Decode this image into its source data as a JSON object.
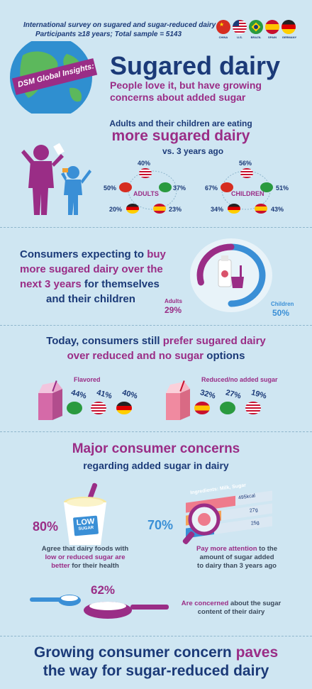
{
  "header": {
    "survey_line1": "International survey on sugared and sugar-reduced dairy",
    "survey_line2": "Participants ≥18 years; Total sample = 5143",
    "countries": [
      "CHINA",
      "U.S.",
      "BRAZIL",
      "SPAIN",
      "GERMANY"
    ],
    "badge": "DSM Global Insights:",
    "title": "Sugared dairy",
    "subtitle_line1": "People love it, but have growing",
    "subtitle_line2": "concerns about added sugar"
  },
  "section1": {
    "line1": "Adults and their children are eating",
    "line2": "more sugared dairy",
    "line3": "vs. 3 years ago",
    "adults": {
      "label": "ADULTS",
      "us": "40%",
      "china": "50%",
      "brazil": "37%",
      "germany": "20%",
      "spain": "23%"
    },
    "children": {
      "label": "CHILDREN",
      "us": "56%",
      "china": "67%",
      "brazil": "51%",
      "germany": "34%",
      "spain": "43%"
    }
  },
  "section2": {
    "line1a": "Consumers expecting to",
    "line1b": "buy",
    "line2": "more sugared dairy over the",
    "line3a": "next 3 years",
    "line3b": "for themselves",
    "line4": "and their children",
    "adults_label": "Adults",
    "adults_value": "29%",
    "children_label": "Children",
    "children_value": "50%",
    "adults_fraction": 0.29,
    "children_fraction": 0.5
  },
  "section3": {
    "line1a": "Today, consumers still",
    "line1b": "prefer sugared dairy",
    "line2a": "over reduced and no sugar",
    "line2b": "options",
    "flavored_label": "Flavored",
    "flavored": [
      {
        "country": "BRAZIL",
        "value": "44%"
      },
      {
        "country": "U.S.",
        "value": "41%"
      },
      {
        "country": "GERMANY",
        "value": "40%"
      }
    ],
    "reduced_label": "Reduced/no added sugar",
    "reduced": [
      {
        "country": "SPAIN",
        "value": "32%"
      },
      {
        "country": "BRAZIL",
        "value": "27%"
      },
      {
        "country": "U.S.",
        "value": "19%"
      }
    ]
  },
  "section4": {
    "title": "Major consumer concerns",
    "subtitle": "regarding added sugar in dairy",
    "stat1_value": "80%",
    "low_sugar_line1": "LOW",
    "low_sugar_line2": "SUGAR",
    "stat1_line1": "Agree that dairy foods with",
    "stat1_line2": "low or reduced sugar are",
    "stat1_line3a": "better",
    "stat1_line3b": "for their health",
    "ingredients": "Ingredients: Milk, Sugar",
    "kcal": "495kcal",
    "grams1": "27g",
    "grams2": "25g",
    "stat2_value": "70%",
    "stat2_line1a": "Pay more attention",
    "stat2_line1b": "to the",
    "stat2_line2": "amount of sugar added",
    "stat2_line3": "to dairy than 3 years ago",
    "stat3_value": "62%",
    "stat3_line1a": "Are concerned",
    "stat3_line1b": "about the sugar",
    "stat3_line2": "content of their dairy"
  },
  "footer": {
    "line1a": "Growing consumer concern",
    "line1b": "paves",
    "line2": "the way for sugar-reduced dairy"
  },
  "colors": {
    "navy": "#1b3a78",
    "purple": "#9a2d86",
    "light_blue": "#cfe6f2",
    "accent_blue": "#3a8fd6"
  }
}
